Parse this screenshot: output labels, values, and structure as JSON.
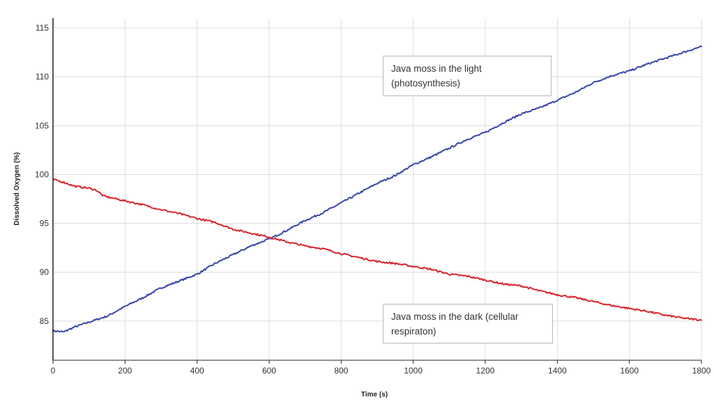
{
  "chart_data": {
    "type": "line",
    "xlabel": "Time (s)",
    "ylabel": "Dissolved Oxygen (%)",
    "xlim": [
      0,
      1800
    ],
    "ylim": [
      81,
      116
    ],
    "xticks": [
      0,
      200,
      400,
      600,
      800,
      1000,
      1200,
      1400,
      1600,
      1800
    ],
    "yticks": [
      85,
      90,
      95,
      100,
      105,
      110,
      115
    ],
    "grid": true,
    "series": [
      {
        "color": "#3a46a8",
        "x": [
          0,
          30,
          60,
          100,
          150,
          200,
          250,
          300,
          350,
          400,
          450,
          500,
          550,
          600,
          650,
          700,
          750,
          800,
          850,
          900,
          950,
          1000,
          1050,
          1100,
          1150,
          1200,
          1250,
          1300,
          1350,
          1400,
          1450,
          1500,
          1550,
          1600,
          1650,
          1700,
          1750,
          1800
        ],
        "y": [
          84.0,
          83.9,
          84.4,
          84.9,
          85.5,
          86.5,
          87.4,
          88.4,
          89.1,
          89.8,
          90.9,
          91.8,
          92.7,
          93.4,
          94.3,
          95.3,
          96.1,
          97.1,
          98.1,
          99.1,
          99.9,
          101.0,
          101.8,
          102.7,
          103.6,
          104.3,
          105.3,
          106.2,
          106.8,
          107.6,
          108.4,
          109.4,
          110.1,
          110.6,
          111.3,
          111.9,
          112.5,
          113.1
        ]
      },
      {
        "color": "#d6262e",
        "x": [
          0,
          30,
          60,
          100,
          120,
          140,
          200,
          250,
          300,
          350,
          400,
          450,
          500,
          550,
          600,
          650,
          700,
          750,
          800,
          850,
          900,
          950,
          1000,
          1050,
          1100,
          1150,
          1200,
          1250,
          1300,
          1350,
          1400,
          1450,
          1500,
          1550,
          1600,
          1650,
          1700,
          1750,
          1800
        ],
        "y": [
          99.5,
          99.2,
          98.8,
          98.6,
          98.4,
          97.8,
          97.3,
          96.9,
          96.4,
          96.0,
          95.5,
          95.1,
          94.4,
          94.0,
          93.6,
          93.1,
          92.7,
          92.4,
          91.9,
          91.5,
          91.1,
          90.9,
          90.6,
          90.3,
          89.8,
          89.6,
          89.2,
          88.8,
          88.6,
          88.1,
          87.7,
          87.4,
          87.0,
          86.6,
          86.3,
          86.0,
          85.6,
          85.3,
          85.1
        ]
      }
    ],
    "annotations": [
      {
        "text": "Java moss in the light (photosynthesis)"
      },
      {
        "text": "Java moss in the dark (cellular respiraton)"
      }
    ]
  }
}
